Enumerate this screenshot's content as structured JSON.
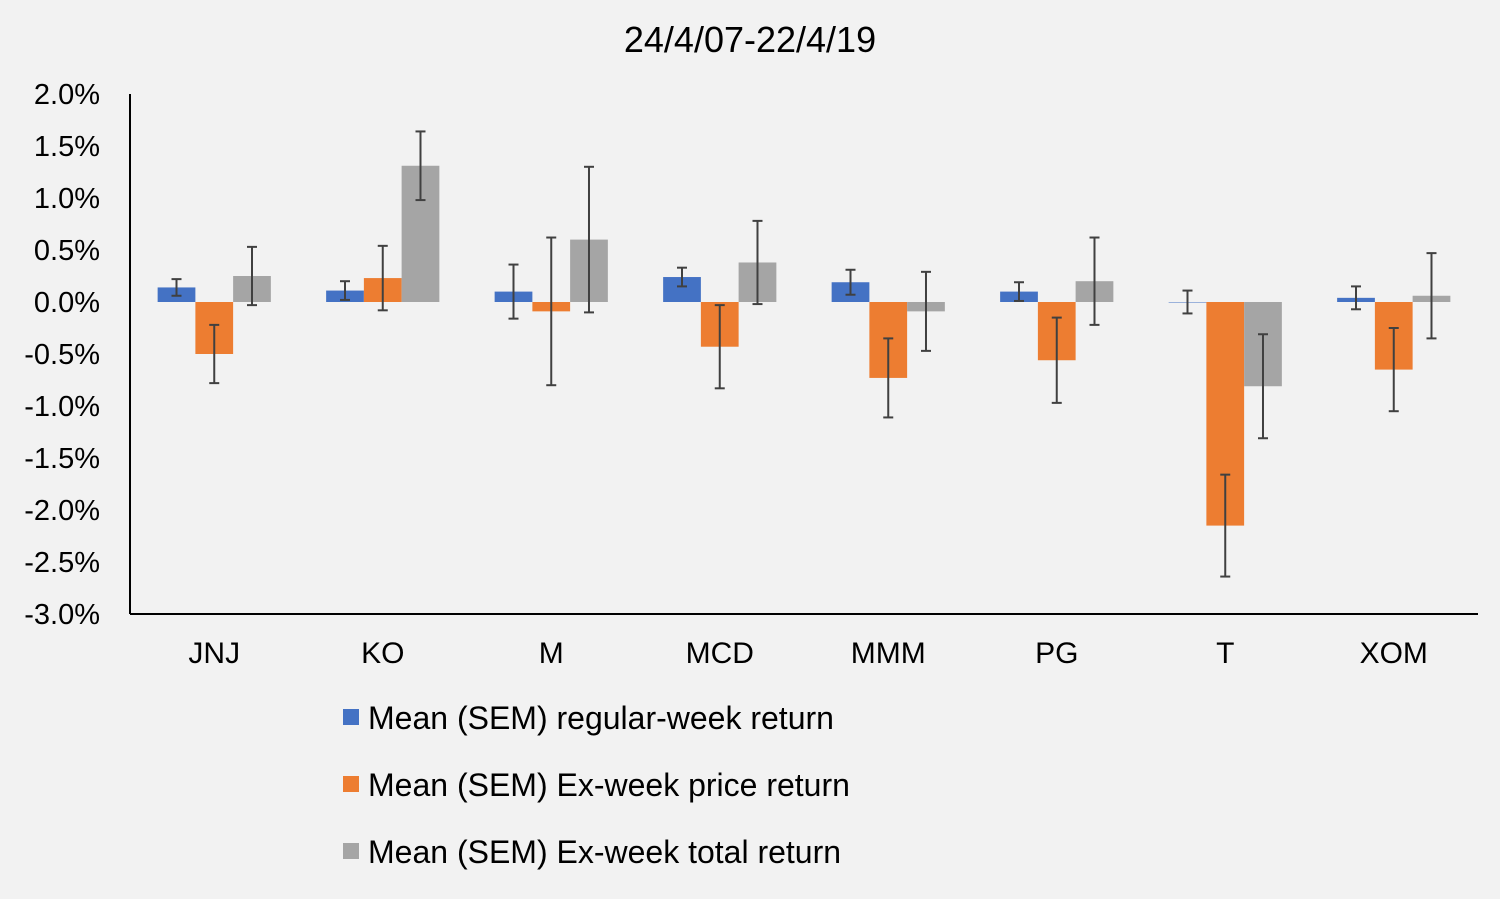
{
  "chart_data": {
    "type": "bar",
    "title": "24/4/07-22/4/19",
    "xlabel": "",
    "ylabel": "",
    "ylim": [
      -3.0,
      2.0
    ],
    "ytick_values": [
      2.0,
      1.5,
      1.0,
      0.5,
      0.0,
      -0.5,
      -1.0,
      -1.5,
      -2.0,
      -2.5,
      -3.0
    ],
    "ytick_labels": [
      "2.0%",
      "1.5%",
      "1.0%",
      "0.5%",
      "0.0%",
      "-0.5%",
      "-1.0%",
      "-1.5%",
      "-2.0%",
      "-2.5%",
      "-3.0%"
    ],
    "unit": "%",
    "grid": false,
    "legend_position": "bottom",
    "categories": [
      "JNJ",
      "KO",
      "M",
      "MCD",
      "MMM",
      "PG",
      "T",
      "XOM"
    ],
    "series": [
      {
        "name": "Mean (SEM) regular-week return",
        "color": "#4472c4",
        "values": [
          0.14,
          0.11,
          0.1,
          0.24,
          0.19,
          0.1,
          0.0,
          0.04
        ],
        "errors": [
          0.08,
          0.09,
          0.26,
          0.09,
          0.12,
          0.09,
          0.11,
          0.11
        ]
      },
      {
        "name": "Mean (SEM) Ex-week price return",
        "color": "#ed7d31",
        "values": [
          -0.5,
          0.23,
          -0.09,
          -0.43,
          -0.73,
          -0.56,
          -2.15,
          -0.65
        ],
        "errors": [
          0.28,
          0.31,
          0.71,
          0.4,
          0.38,
          0.41,
          0.49,
          0.4
        ]
      },
      {
        "name": "Mean (SEM) Ex-week total return",
        "color": "#a5a5a5",
        "values": [
          0.25,
          1.31,
          0.6,
          0.38,
          -0.09,
          0.2,
          -0.81,
          0.06
        ],
        "errors": [
          0.28,
          0.33,
          0.7,
          0.4,
          0.38,
          0.42,
          0.5,
          0.41
        ]
      }
    ]
  }
}
